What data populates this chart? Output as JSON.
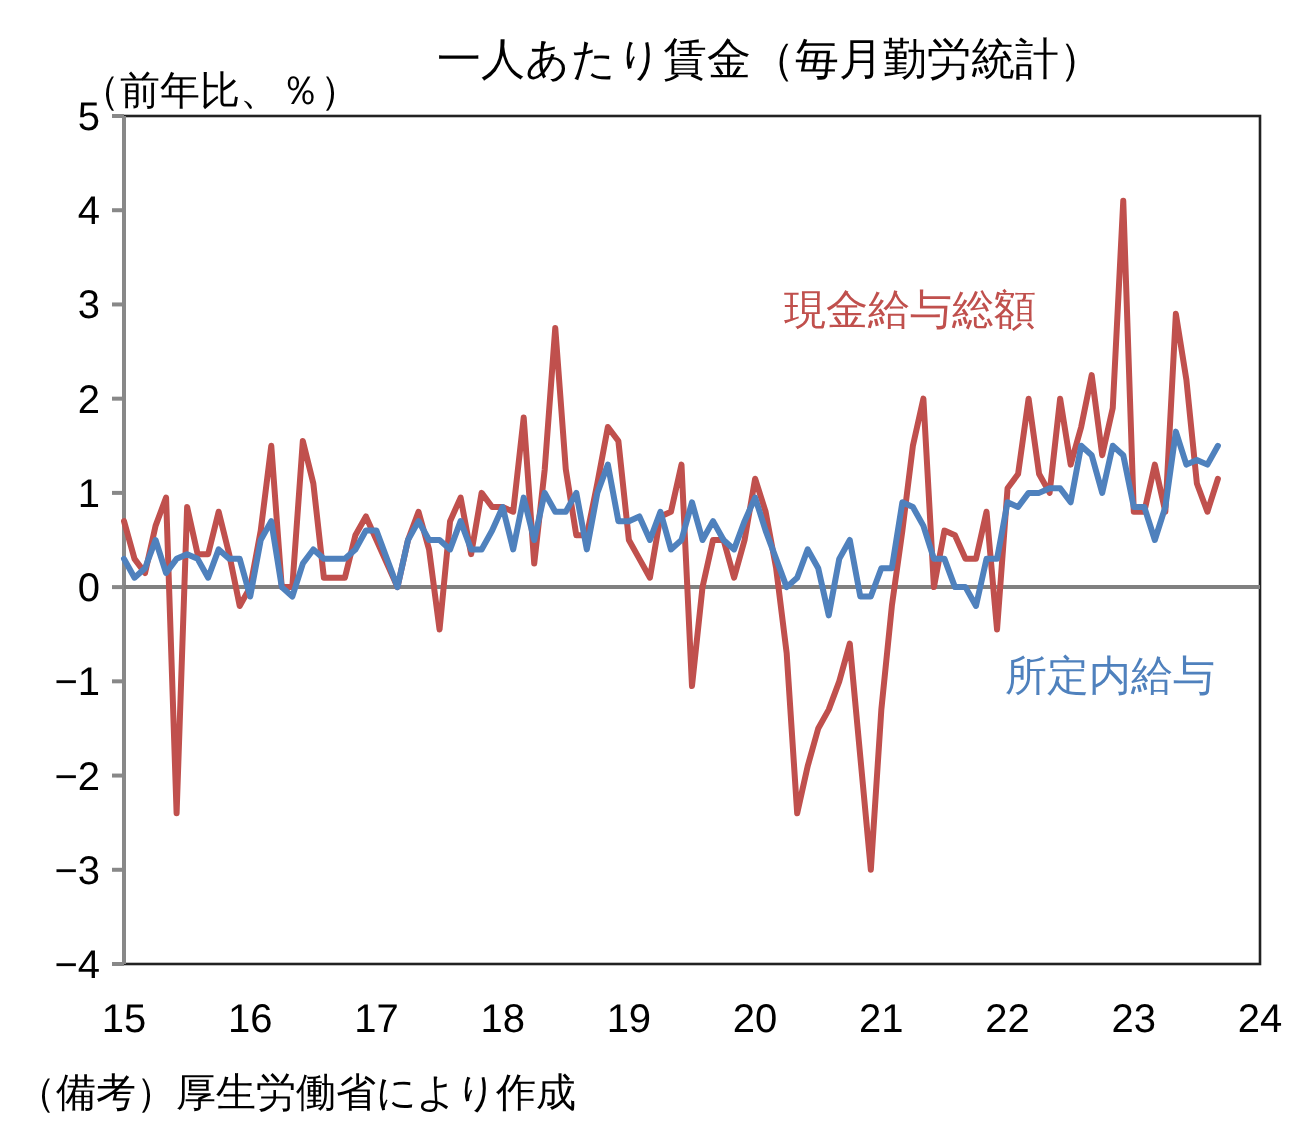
{
  "chart_data": {
    "type": "line",
    "title": "一人あたり賃金（毎月勤労統計）",
    "ylabel": "（前年比、％）",
    "annotations": [
      "（備考）厚生労働省により作成"
    ],
    "x": [
      "2015-01",
      "2015-02",
      "2015-03",
      "2015-04",
      "2015-05",
      "2015-06",
      "2015-07",
      "2015-08",
      "2015-09",
      "2015-10",
      "2015-11",
      "2015-12",
      "2016-01",
      "2016-02",
      "2016-03",
      "2016-04",
      "2016-05",
      "2016-06",
      "2016-07",
      "2016-08",
      "2016-09",
      "2016-10",
      "2016-11",
      "2016-12",
      "2017-01",
      "2017-02",
      "2017-03",
      "2017-04",
      "2017-05",
      "2017-06",
      "2017-07",
      "2017-08",
      "2017-09",
      "2017-10",
      "2017-11",
      "2017-12",
      "2018-01",
      "2018-02",
      "2018-03",
      "2018-04",
      "2018-05",
      "2018-06",
      "2018-07",
      "2018-08",
      "2018-09",
      "2018-10",
      "2018-11",
      "2018-12",
      "2019-01",
      "2019-02",
      "2019-03",
      "2019-04",
      "2019-05",
      "2019-06",
      "2019-07",
      "2019-08",
      "2019-09",
      "2019-10",
      "2019-11",
      "2019-12",
      "2020-01",
      "2020-02",
      "2020-03",
      "2020-04",
      "2020-05",
      "2020-06",
      "2020-07",
      "2020-08",
      "2020-09",
      "2020-10",
      "2020-11",
      "2020-12",
      "2021-01",
      "2021-02",
      "2021-03",
      "2021-04",
      "2021-05",
      "2021-06",
      "2021-07",
      "2021-08",
      "2021-09",
      "2021-10",
      "2021-11",
      "2021-12",
      "2022-01",
      "2022-02",
      "2022-03",
      "2022-04",
      "2022-05",
      "2022-06",
      "2022-07",
      "2022-08",
      "2022-09",
      "2022-10",
      "2022-11",
      "2022-12",
      "2023-01",
      "2023-02",
      "2023-03",
      "2023-04",
      "2023-05",
      "2023-06",
      "2023-07",
      "2023-08",
      "2023-09"
    ],
    "series": [
      {
        "name": "現金給与総額",
        "color": "#c0504d",
        "values": [
          0.7,
          0.3,
          0.15,
          0.65,
          0.95,
          -2.4,
          0.85,
          0.35,
          0.35,
          0.8,
          0.35,
          -0.2,
          0.0,
          0.6,
          1.5,
          0.0,
          0.0,
          1.55,
          1.1,
          0.1,
          0.1,
          0.1,
          0.55,
          0.75,
          0.5,
          0.25,
          0.0,
          0.5,
          0.8,
          0.4,
          -0.45,
          0.7,
          0.95,
          0.35,
          1.0,
          0.85,
          0.85,
          0.8,
          1.8,
          0.25,
          1.25,
          2.75,
          1.25,
          0.55,
          0.55,
          1.1,
          1.7,
          1.55,
          0.5,
          0.3,
          0.1,
          0.75,
          0.8,
          1.3,
          -1.05,
          0.0,
          0.5,
          0.5,
          0.1,
          0.5,
          1.15,
          0.8,
          0.2,
          -0.7,
          -2.4,
          -1.9,
          -1.5,
          -1.3,
          -1.0,
          -0.6,
          -1.8,
          -3.0,
          -1.3,
          -0.2,
          0.6,
          1.5,
          2.0,
          0.0,
          0.6,
          0.55,
          0.3,
          0.3,
          0.8,
          -0.45,
          1.05,
          1.2,
          2.0,
          1.2,
          1.0,
          2.0,
          1.3,
          1.7,
          2.25,
          1.4,
          1.9,
          4.1,
          0.8,
          0.8,
          1.3,
          0.8,
          2.9,
          2.2,
          1.1,
          0.8,
          1.15
        ]
      },
      {
        "name": "所定内給与",
        "color": "#4f81bd",
        "values": [
          0.3,
          0.1,
          0.2,
          0.5,
          0.15,
          0.3,
          0.35,
          0.3,
          0.1,
          0.4,
          0.3,
          0.3,
          -0.1,
          0.5,
          0.7,
          0.0,
          -0.1,
          0.25,
          0.4,
          0.3,
          0.3,
          0.3,
          0.4,
          0.6,
          0.6,
          0.3,
          0.0,
          0.5,
          0.7,
          0.5,
          0.5,
          0.4,
          0.7,
          0.4,
          0.4,
          0.6,
          0.85,
          0.4,
          0.95,
          0.5,
          1.0,
          0.8,
          0.8,
          1.0,
          0.4,
          1.0,
          1.3,
          0.7,
          0.7,
          0.75,
          0.5,
          0.8,
          0.4,
          0.5,
          0.9,
          0.5,
          0.7,
          0.5,
          0.4,
          0.7,
          0.95,
          0.6,
          0.3,
          0.0,
          0.1,
          0.4,
          0.2,
          -0.3,
          0.3,
          0.5,
          -0.1,
          -0.1,
          0.2,
          0.2,
          0.9,
          0.85,
          0.65,
          0.3,
          0.3,
          0.0,
          0.0,
          -0.2,
          0.3,
          0.3,
          0.9,
          0.85,
          1.0,
          1.0,
          1.05,
          1.05,
          0.9,
          1.5,
          1.4,
          1.0,
          1.5,
          1.4,
          0.85,
          0.85,
          0.5,
          0.85,
          1.65,
          1.3,
          1.35,
          1.3,
          1.5
        ]
      }
    ],
    "xlim": [
      "2015-01",
      "2024-01"
    ],
    "xticks": [
      {
        "value": "2015-01",
        "label": "15"
      },
      {
        "value": "2016-01",
        "label": "16"
      },
      {
        "value": "2017-01",
        "label": "17"
      },
      {
        "value": "2018-01",
        "label": "18"
      },
      {
        "value": "2019-01",
        "label": "19"
      },
      {
        "value": "2020-01",
        "label": "20"
      },
      {
        "value": "2021-01",
        "label": "21"
      },
      {
        "value": "2022-01",
        "label": "22"
      },
      {
        "value": "2023-01",
        "label": "23"
      },
      {
        "value": "2024-01",
        "label": "24"
      }
    ],
    "ylim": [
      -4,
      5
    ],
    "yticks": [
      -4,
      -3,
      -2,
      -1,
      0,
      1,
      2,
      3,
      4,
      5
    ],
    "ref_lines": [
      {
        "axis": "y",
        "value": 0,
        "color": "#808080"
      }
    ],
    "legend": false,
    "grid": false
  }
}
